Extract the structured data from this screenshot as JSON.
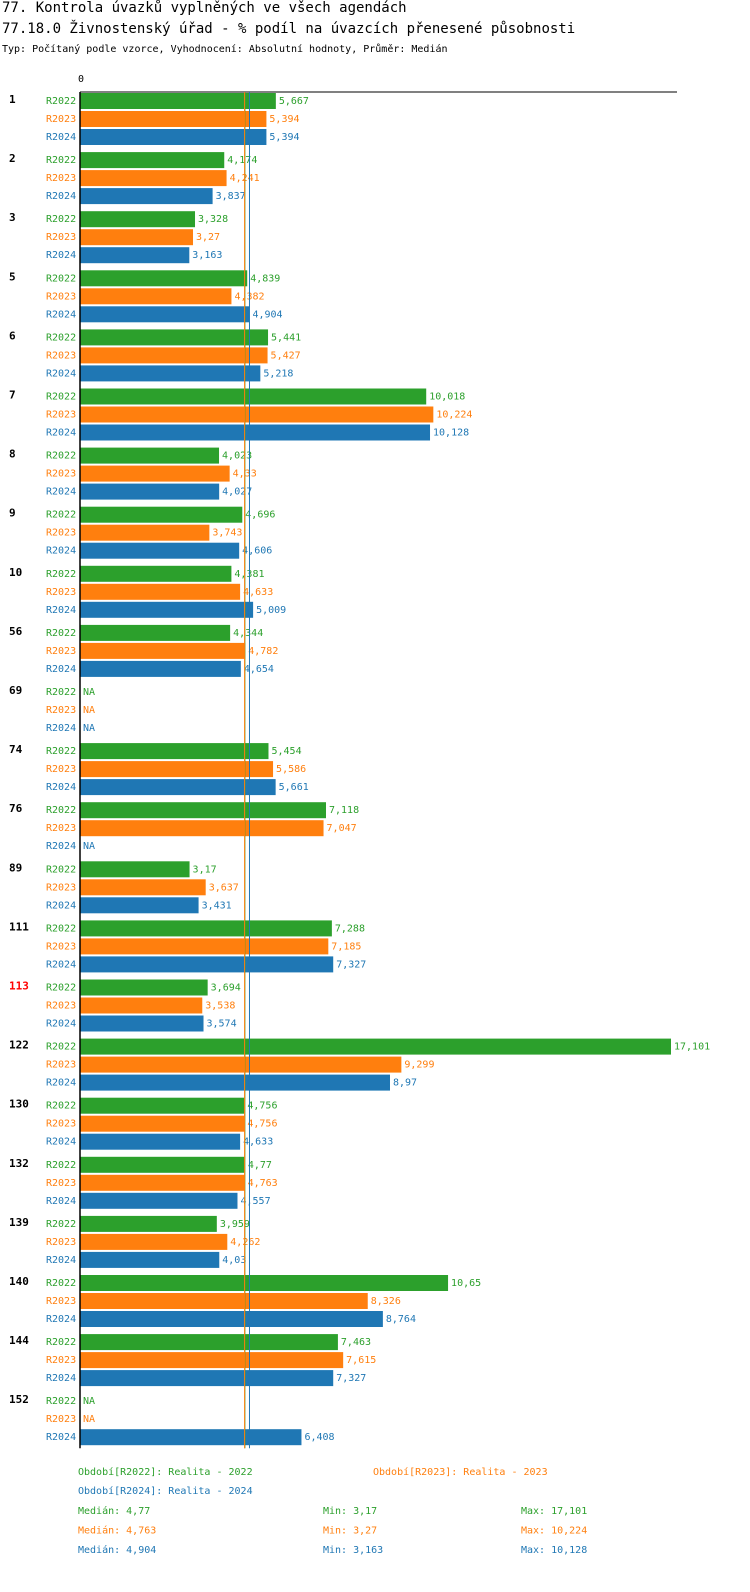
{
  "header": {
    "title_line1": "77. Kontrola úvazků vyplněných ve všech agendách",
    "title_line2": "77.18.0 Živnostenský úřad - % podíl na úvazcích přenesené působnosti",
    "subtitle": "Typ: Počítaný podle vzorce, Vyhodnocení: Absolutní hodnoty, Průměr: Medián"
  },
  "chart_data": {
    "type": "bar",
    "orientation": "horizontal",
    "axis_zero_label": "0",
    "xlim": [
      0,
      17.101
    ],
    "decimal_separator": ",",
    "na_label": "NA",
    "series": [
      {
        "name": "R2022",
        "color": "#2ca02c",
        "median": 4.77
      },
      {
        "name": "R2023",
        "color": "#ff7f0e",
        "median": 4.763
      },
      {
        "name": "R2024",
        "color": "#1f77b4",
        "median": 4.904
      }
    ],
    "groups": [
      {
        "label": "1",
        "highlight": false,
        "values": [
          5.667,
          5.394,
          5.394
        ]
      },
      {
        "label": "2",
        "highlight": false,
        "values": [
          4.174,
          4.241,
          3.837
        ]
      },
      {
        "label": "3",
        "highlight": false,
        "values": [
          3.328,
          3.27,
          3.163
        ]
      },
      {
        "label": "5",
        "highlight": false,
        "values": [
          4.839,
          4.382,
          4.904
        ]
      },
      {
        "label": "6",
        "highlight": false,
        "values": [
          5.441,
          5.427,
          5.218
        ]
      },
      {
        "label": "7",
        "highlight": false,
        "values": [
          10.018,
          10.224,
          10.128
        ]
      },
      {
        "label": "8",
        "highlight": false,
        "values": [
          4.023,
          4.33,
          4.027
        ]
      },
      {
        "label": "9",
        "highlight": false,
        "values": [
          4.696,
          3.743,
          4.606
        ]
      },
      {
        "label": "10",
        "highlight": false,
        "values": [
          4.381,
          4.633,
          5.009
        ]
      },
      {
        "label": "56",
        "highlight": false,
        "values": [
          4.344,
          4.782,
          4.654
        ]
      },
      {
        "label": "69",
        "highlight": false,
        "values": [
          null,
          null,
          null
        ]
      },
      {
        "label": "74",
        "highlight": false,
        "values": [
          5.454,
          5.586,
          5.661
        ]
      },
      {
        "label": "76",
        "highlight": false,
        "values": [
          7.118,
          7.047,
          null
        ]
      },
      {
        "label": "89",
        "highlight": false,
        "values": [
          3.17,
          3.637,
          3.431
        ]
      },
      {
        "label": "111",
        "highlight": false,
        "values": [
          7.288,
          7.185,
          7.327
        ]
      },
      {
        "label": "113",
        "highlight": true,
        "values": [
          3.694,
          3.538,
          3.574
        ]
      },
      {
        "label": "122",
        "highlight": false,
        "values": [
          17.101,
          9.299,
          8.97
        ]
      },
      {
        "label": "130",
        "highlight": false,
        "values": [
          4.756,
          4.756,
          4.633
        ]
      },
      {
        "label": "132",
        "highlight": false,
        "values": [
          4.77,
          4.763,
          4.557
        ]
      },
      {
        "label": "139",
        "highlight": false,
        "values": [
          3.959,
          4.262,
          4.03
        ]
      },
      {
        "label": "140",
        "highlight": false,
        "values": [
          10.65,
          8.326,
          8.764
        ]
      },
      {
        "label": "144",
        "highlight": false,
        "values": [
          7.463,
          7.615,
          7.327
        ]
      },
      {
        "label": "152",
        "highlight": false,
        "values": [
          null,
          null,
          6.408
        ]
      }
    ],
    "legend": {
      "entries": [
        {
          "text": "Období[R2022]: Realita - 2022",
          "color": "#2ca02c"
        },
        {
          "text": "Období[R2023]: Realita - 2023",
          "color": "#ff7f0e"
        },
        {
          "text": "Období[R2024]: Realita - 2024",
          "color": "#1f77b4"
        }
      ],
      "stats": [
        {
          "median": "Medián: 4,77",
          "min": "Min: 3,17",
          "max": "Max: 17,101",
          "color": "#2ca02c"
        },
        {
          "median": "Medián: 4,763",
          "min": "Min: 3,27",
          "max": "Max: 10,224",
          "color": "#ff7f0e"
        },
        {
          "median": "Medián: 4,904",
          "min": "Min: 3,163",
          "max": "Max: 10,128",
          "color": "#1f77b4"
        }
      ]
    }
  }
}
